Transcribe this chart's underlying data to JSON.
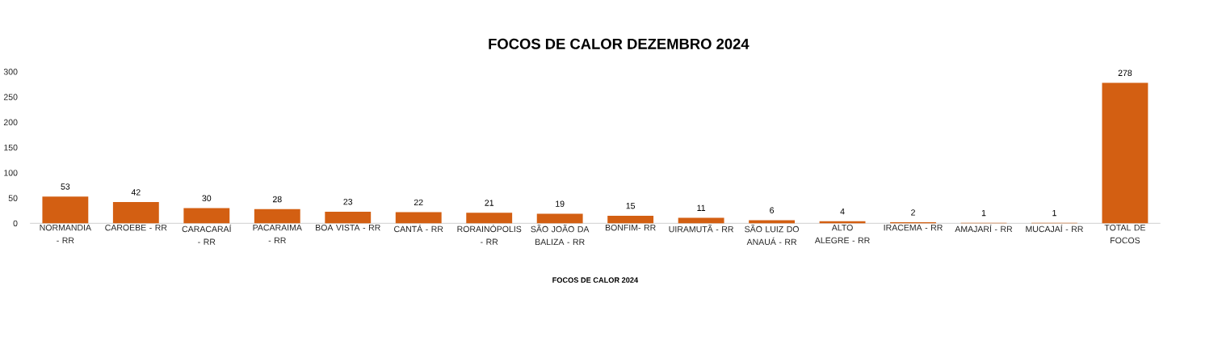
{
  "chart_data": {
    "type": "bar",
    "title": "FOCOS DE CALOR DEZEMBRO 2024",
    "xlabel": "FOCOS DE CALOR 2024",
    "categories": [
      "NORMANDIA - RR",
      "CAROEBE - RR",
      "CARACARAÍ - RR",
      "PACARAIMA - RR",
      "BOA VISTA - RR",
      "CANTÁ - RR",
      "RORAINÓPOLIS - RR",
      "SÃO JOÃO DA BALIZA - RR",
      "BONFIM- RR",
      "UIRAMUTÃ - RR",
      "SÃO LUIZ DO ANAUÁ - RR",
      "ALTO ALEGRE - RR",
      "IRACEMA - RR",
      "AMAJARÍ - RR",
      "MUCAJAÍ - RR",
      "TOTAL DE FOCOS"
    ],
    "values": [
      53,
      42,
      30,
      28,
      23,
      22,
      21,
      19,
      15,
      11,
      6,
      4,
      2,
      1,
      1,
      278
    ],
    "color": "#d35f12",
    "ylim": [
      0,
      300
    ],
    "yticks": [
      0,
      50,
      100,
      150,
      200,
      250,
      300
    ],
    "data_labels": true
  }
}
